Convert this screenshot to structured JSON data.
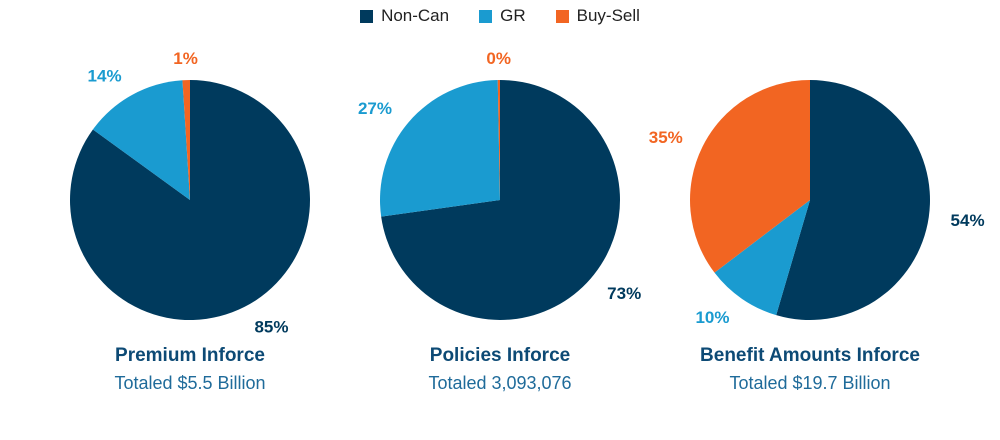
{
  "legend": [
    {
      "label": "Non-Can",
      "color": "#003a5d"
    },
    {
      "label": "GR",
      "color": "#1a9bd0"
    },
    {
      "label": "Buy-Sell",
      "color": "#f26522"
    }
  ],
  "chart_data": [
    {
      "type": "pie",
      "title": "Premium Inforce",
      "subtitle": "Totaled $5.5 Billion",
      "slices": [
        {
          "name": "Non-Can",
          "value": 85,
          "label": "85%",
          "color": "#003a5d"
        },
        {
          "name": "GR",
          "value": 14,
          "label": "14%",
          "color": "#1a9bd0"
        },
        {
          "name": "Buy-Sell",
          "value": 1,
          "label": "1%",
          "color": "#f26522"
        }
      ]
    },
    {
      "type": "pie",
      "title": "Policies Inforce",
      "subtitle": "Totaled 3,093,076",
      "slices": [
        {
          "name": "Non-Can",
          "value": 73,
          "label": "73%",
          "color": "#003a5d"
        },
        {
          "name": "GR",
          "value": 27,
          "label": "27%",
          "color": "#1a9bd0"
        },
        {
          "name": "Buy-Sell",
          "value": 0.3,
          "label": "0%",
          "color": "#f26522"
        }
      ]
    },
    {
      "type": "pie",
      "title": "Benefit Amounts Inforce",
      "subtitle": "Totaled $19.7 Billion",
      "slices": [
        {
          "name": "Non-Can",
          "value": 54,
          "label": "54%",
          "color": "#003a5d"
        },
        {
          "name": "GR",
          "value": 10,
          "label": "10%",
          "color": "#1a9bd0"
        },
        {
          "name": "Buy-Sell",
          "value": 35,
          "label": "35%",
          "color": "#f26522"
        }
      ]
    }
  ]
}
